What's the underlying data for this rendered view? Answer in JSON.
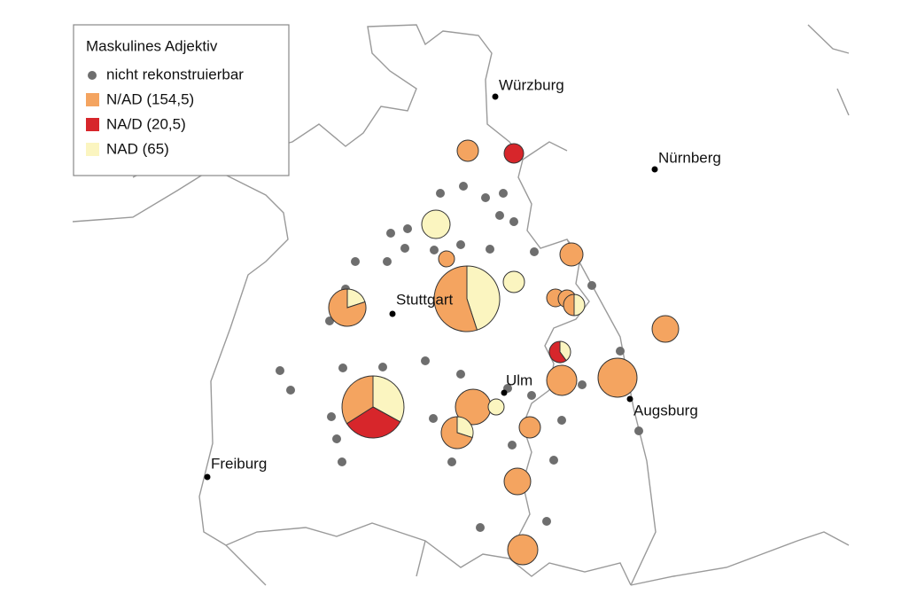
{
  "legend": {
    "title": "Maskulines Adjektiv",
    "items": [
      {
        "label": "nicht rekonstruierbar",
        "color": "#6e6e6e"
      },
      {
        "label": "N/AD (154,5)",
        "color": "#f4a460"
      },
      {
        "label": "NA/D (20,5)",
        "color": "#d7262b"
      },
      {
        "label": "NAD (65)",
        "color": "#fbf5c0"
      }
    ]
  },
  "cities": [
    "Würzburg",
    "Nürnberg",
    "Stuttgart",
    "Ulm",
    "Augsburg",
    "Freiburg"
  ],
  "pies": [
    {
      "values": [
        1,
        0,
        0
      ]
    },
    {
      "values": [
        0,
        1,
        0
      ]
    },
    {
      "values": [
        0,
        0,
        1
      ]
    },
    {
      "values": [
        1,
        0,
        0
      ]
    },
    {
      "values": [
        0.55,
        0,
        0.45
      ]
    },
    {
      "values": [
        0,
        0,
        1
      ]
    },
    {
      "values": [
        0.8,
        0,
        0.2
      ]
    },
    {
      "values": [
        1,
        0,
        0
      ]
    },
    {
      "values": [
        1,
        0,
        0
      ]
    },
    {
      "values": [
        1,
        0,
        0
      ]
    },
    {
      "values": [
        0.5,
        0,
        0.5
      ]
    },
    {
      "values": [
        1,
        0,
        0
      ]
    },
    {
      "values": [
        0,
        0.6,
        0.4
      ]
    },
    {
      "values": [
        1,
        0,
        0
      ]
    },
    {
      "values": [
        1,
        0,
        0
      ]
    },
    {
      "values": [
        0.34,
        0.33,
        0.33
      ]
    },
    {
      "values": [
        1,
        0,
        0
      ]
    },
    {
      "values": [
        0,
        0,
        1
      ]
    },
    {
      "values": [
        0.7,
        0,
        0.3
      ]
    },
    {
      "values": [
        1,
        0,
        0
      ]
    },
    {
      "values": [
        1,
        0,
        0
      ]
    },
    {
      "values": [
        1,
        0,
        0
      ]
    }
  ]
}
